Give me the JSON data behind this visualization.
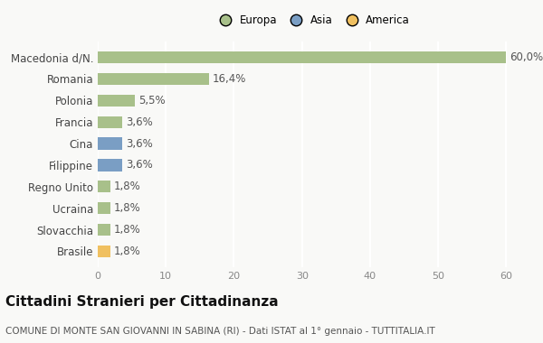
{
  "categories": [
    "Macedonia d/N.",
    "Romania",
    "Polonia",
    "Francia",
    "Cina",
    "Filippine",
    "Regno Unito",
    "Ucraina",
    "Slovacchia",
    "Brasile"
  ],
  "values": [
    60.0,
    16.4,
    5.5,
    3.6,
    3.6,
    3.6,
    1.8,
    1.8,
    1.8,
    1.8
  ],
  "labels": [
    "60,0%",
    "16,4%",
    "5,5%",
    "3,6%",
    "3,6%",
    "3,6%",
    "1,8%",
    "1,8%",
    "1,8%",
    "1,8%"
  ],
  "colors": [
    "#a8c08a",
    "#a8c08a",
    "#a8c08a",
    "#a8c08a",
    "#7a9ec4",
    "#7a9ec4",
    "#a8c08a",
    "#a8c08a",
    "#a8c08a",
    "#f0c060"
  ],
  "legend": [
    {
      "label": "Europa",
      "color": "#a8c08a"
    },
    {
      "label": "Asia",
      "color": "#7a9ec4"
    },
    {
      "label": "America",
      "color": "#f0c060"
    }
  ],
  "xlim": [
    0,
    63
  ],
  "xticks": [
    0,
    10,
    20,
    30,
    40,
    50,
    60
  ],
  "title": "Cittadini Stranieri per Cittadinanza",
  "subtitle": "COMUNE DI MONTE SAN GIOVANNI IN SABINA (RI) - Dati ISTAT al 1° gennaio - TUTTITALIA.IT",
  "background_color": "#f9f9f7",
  "grid_color": "#ffffff",
  "bar_height": 0.55,
  "label_fontsize": 8.5,
  "tick_fontsize": 8,
  "title_fontsize": 11,
  "subtitle_fontsize": 7.5
}
